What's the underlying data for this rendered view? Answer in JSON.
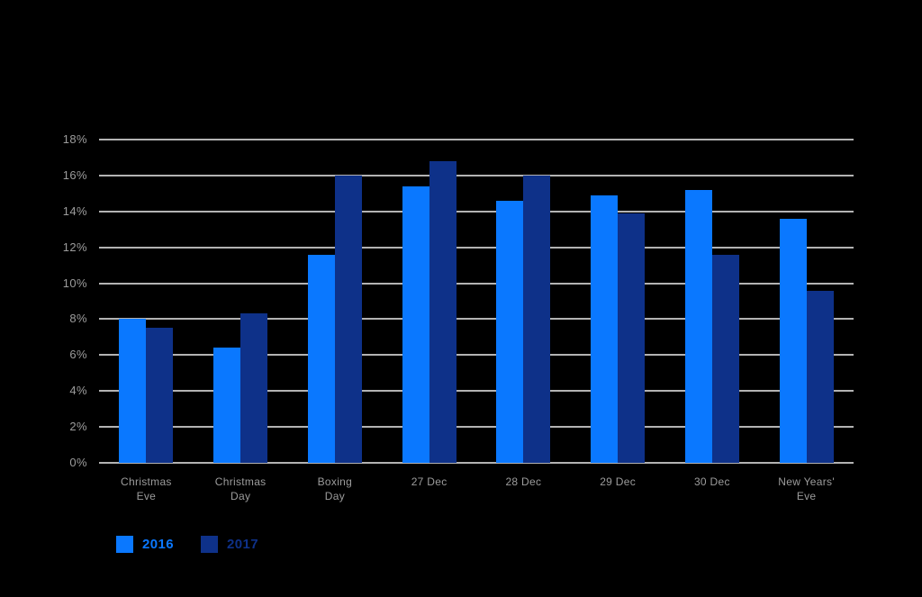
{
  "page": {
    "background_color": "#000000"
  },
  "chart_data": {
    "type": "bar",
    "categories": [
      "Christmas\nEve",
      "Christmas\nDay",
      "Boxing\nDay",
      "27 Dec",
      "28 Dec",
      "29 Dec",
      "30 Dec",
      "New Years'\nEve"
    ],
    "series": [
      {
        "name": "2016",
        "color": "#0a78ff",
        "values": [
          8.0,
          6.4,
          11.6,
          15.4,
          14.6,
          14.9,
          15.2,
          13.6
        ]
      },
      {
        "name": "2017",
        "color": "#0e3189",
        "values": [
          7.5,
          8.3,
          16.0,
          16.8,
          16.0,
          13.9,
          11.6,
          9.6
        ]
      }
    ],
    "xlabel": "",
    "ylabel": "",
    "ylim": [
      0,
      18
    ],
    "ytick_step": 2,
    "ytick_suffix": "%",
    "grid": true,
    "gridline_color": "#b3b3b3",
    "tick_label_color": "#9c9c9c",
    "legend_position": "bottom-left",
    "legend_entries": [
      "2016",
      "2017"
    ]
  }
}
